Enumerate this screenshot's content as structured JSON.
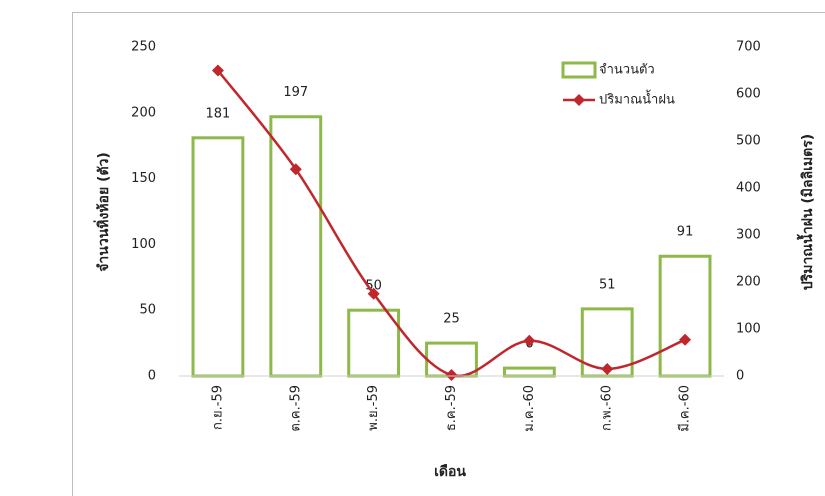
{
  "chart_data": {
    "type": "combo",
    "x_label": "เดือน",
    "y_label": "จำนวนหิ่งห้อย (ตัว)",
    "y2_label": "ปริมาณน้ำฝน (มิลลิเมตร)",
    "categories": [
      "ก.ย.-59",
      "ต.ค.-59",
      "พ.ย.-59",
      "ธ.ค.-59",
      "ม.ค.-60",
      "ก.พ.-60",
      "มี.ค.-60"
    ],
    "series": [
      {
        "name": "จำนวนตัว",
        "type": "bar",
        "color": "#8db84a",
        "values": [
          181,
          197,
          50,
          25,
          6,
          51,
          91
        ],
        "data_labels": true
      },
      {
        "name": "ปริมาณน้ำฝน",
        "type": "line",
        "axis": "y2",
        "color": "#c0272d",
        "values": [
          650,
          440,
          175,
          2,
          75,
          15,
          77
        ]
      }
    ],
    "ylim": [
      0,
      250
    ],
    "yticks": [
      0,
      50,
      100,
      150,
      200,
      250
    ],
    "y2lim": [
      0,
      700
    ],
    "y2ticks": [
      0,
      100,
      200,
      300,
      400,
      500,
      600,
      700
    ],
    "legend": "upper right"
  }
}
